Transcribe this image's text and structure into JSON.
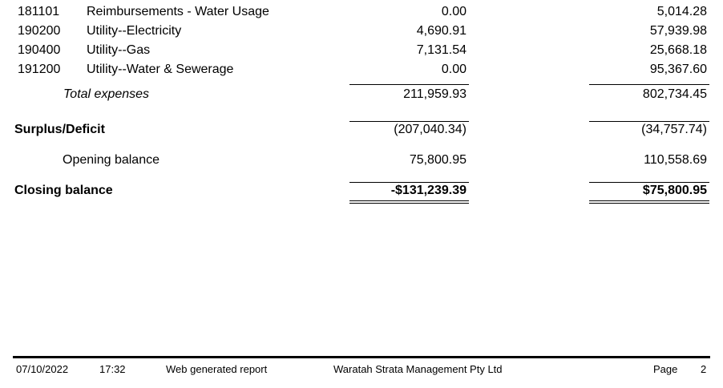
{
  "lines": [
    {
      "code": "181101",
      "description": "Reimbursements - Water Usage",
      "current": "0.00",
      "previous": "5,014.28"
    },
    {
      "code": "190200",
      "description": "Utility--Electricity",
      "current": "4,690.91",
      "previous": "57,939.98"
    },
    {
      "code": "190400",
      "description": "Utility--Gas",
      "current": "7,131.54",
      "previous": "25,668.18"
    },
    {
      "code": "191200",
      "description": "Utility--Water & Sewerage",
      "current": "0.00",
      "previous": "95,367.60"
    }
  ],
  "total_expenses": {
    "label": "Total expenses",
    "current": "211,959.93",
    "previous": "802,734.45"
  },
  "surplus_deficit": {
    "label": "Surplus/Deficit",
    "current": "(207,040.34)",
    "previous": "(34,757.74)"
  },
  "opening_balance": {
    "label": "Opening balance",
    "current": "75,800.95",
    "previous": "110,558.69"
  },
  "closing_balance": {
    "label": "Closing balance",
    "current": "-$131,239.39",
    "previous": "$75,800.95"
  },
  "footer": {
    "date": "07/10/2022",
    "time": "17:32",
    "report_type": "Web generated report",
    "company": "Waratah Strata Management Pty Ltd",
    "page_label": "Page",
    "page_number": "2"
  }
}
